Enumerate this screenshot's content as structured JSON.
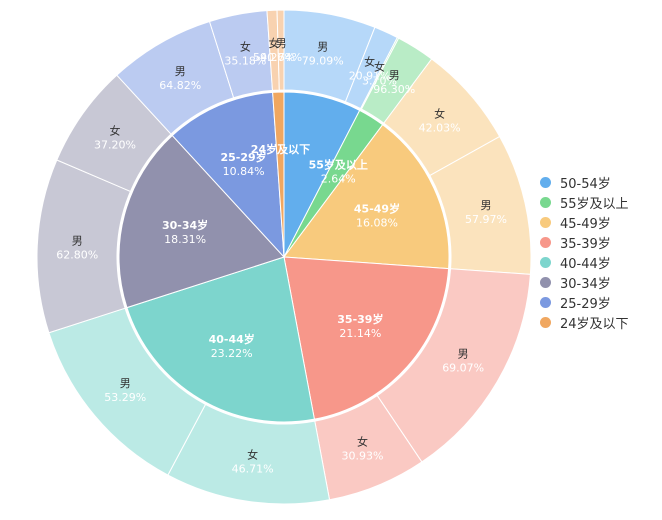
{
  "chart_data": {
    "type": "pie",
    "inner": {
      "series": [
        {
          "name": "50-54岁",
          "name_label": "",
          "value_label": "",
          "value": 7.66,
          "color": "#62aeed"
        },
        {
          "name": "55岁及以上",
          "name_label": "55岁及以上",
          "value_label": "2.64%",
          "value": 2.64,
          "color": "#78d88f"
        },
        {
          "name": "45-49岁",
          "name_label": "45-49岁",
          "value_label": "16.08%",
          "value": 16.08,
          "color": "#f8ca7d"
        },
        {
          "name": "35-39岁",
          "name_label": "35-39岁",
          "value_label": "21.14%",
          "value": 21.14,
          "color": "#f7978a"
        },
        {
          "name": "40-44岁",
          "name_label": "40-44岁",
          "value_label": "23.22%",
          "value": 23.22,
          "color": "#7dd5cd"
        },
        {
          "name": "30-34岁",
          "name_label": "30-34岁",
          "value_label": "18.31%",
          "value": 18.31,
          "color": "#9191ad"
        },
        {
          "name": "25-29岁",
          "name_label": "25-29岁",
          "value_label": "10.84%",
          "value": 10.84,
          "color": "#7b99e0"
        },
        {
          "name": "24岁及以下",
          "name_label": "24岁及以下",
          "value_label": "",
          "value": 1.11,
          "color": "#f0a760"
        }
      ]
    },
    "outer": {
      "series": [
        {
          "group": "50-54岁",
          "name": "男",
          "value_label": "79.09%",
          "value": 79.09,
          "color": "#b6d8f9"
        },
        {
          "group": "50-54岁",
          "name": "女",
          "value_label": "20.91%",
          "value": 20.91,
          "color": "#b6d8f9"
        },
        {
          "group": "55岁及以上",
          "name": "女",
          "value_label": "3.70%",
          "value": 3.7,
          "color": "#b9ecc6"
        },
        {
          "group": "55岁及以上",
          "name": "男",
          "value_label": "96.30%",
          "value": 96.3,
          "color": "#b9ecc6"
        },
        {
          "group": "45-49岁",
          "name": "女",
          "value_label": "42.03%",
          "value": 42.03,
          "color": "#fbe3bd"
        },
        {
          "group": "45-49岁",
          "name": "男",
          "value_label": "57.97%",
          "value": 57.97,
          "color": "#fbe3bd"
        },
        {
          "group": "35-39岁",
          "name": "男",
          "value_label": "69.07%",
          "value": 69.07,
          "color": "#fac9c3"
        },
        {
          "group": "35-39岁",
          "name": "女",
          "value_label": "30.93%",
          "value": 30.93,
          "color": "#fac9c3"
        },
        {
          "group": "40-44岁",
          "name": "女",
          "value_label": "46.71%",
          "value": 46.71,
          "color": "#bbeae5"
        },
        {
          "group": "40-44岁",
          "name": "男",
          "value_label": "53.29%",
          "value": 53.29,
          "color": "#bbeae5"
        },
        {
          "group": "30-34岁",
          "name": "男",
          "value_label": "62.80%",
          "value": 62.8,
          "color": "#c8c8d5"
        },
        {
          "group": "30-34岁",
          "name": "女",
          "value_label": "37.20%",
          "value": 37.2,
          "color": "#c8c8d5"
        },
        {
          "group": "25-29岁",
          "name": "男",
          "value_label": "64.82%",
          "value": 64.82,
          "color": "#bbcbf1"
        },
        {
          "group": "25-29岁",
          "name": "女",
          "value_label": "35.18%",
          "value": 35.18,
          "color": "#bbcbf1"
        },
        {
          "group": "24岁及以下",
          "name": "女",
          "value_label": "59.26%",
          "value": 59.26,
          "color": "#f8d2b0"
        },
        {
          "group": "24岁及以下",
          "name": "男",
          "value_label": "40.74%",
          "value": 40.74,
          "color": "#f8d2b0"
        }
      ]
    },
    "legend": {
      "position": "right",
      "items": [
        {
          "label": "50-54岁",
          "color": "#62aeed"
        },
        {
          "label": "55岁及以上",
          "color": "#78d88f"
        },
        {
          "label": "45-49岁",
          "color": "#f8ca7d"
        },
        {
          "label": "35-39岁",
          "color": "#f7978a"
        },
        {
          "label": "40-44岁",
          "color": "#7dd5cd"
        },
        {
          "label": "30-34岁",
          "color": "#9191ad"
        },
        {
          "label": "25-29岁",
          "color": "#7b99e0"
        },
        {
          "label": "24岁及以下",
          "color": "#f0a760"
        }
      ]
    }
  }
}
